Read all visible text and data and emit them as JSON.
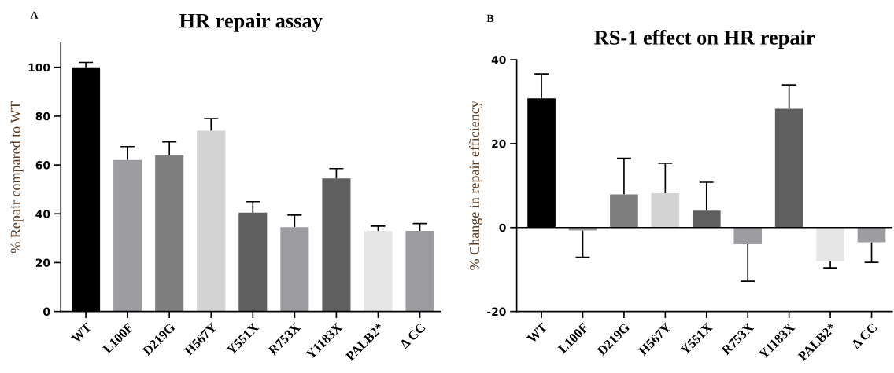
{
  "chart_data": [
    {
      "type": "bar",
      "title": "HR repair assay",
      "ylabel": "% Repair compared to WT",
      "annotations": [
        "A"
      ],
      "categories": [
        "WT",
        "L100F",
        "D219G",
        "H567Y",
        "Y551X",
        "R753X",
        "Y1183X",
        "PALB2*",
        "Δ CC"
      ],
      "values": [
        100,
        62,
        64,
        74,
        40.5,
        34.5,
        54.5,
        33,
        33
      ],
      "errors": [
        [
          100,
          102
        ],
        [
          62,
          67.5
        ],
        [
          64,
          69.5
        ],
        [
          74,
          79
        ],
        [
          40.5,
          45
        ],
        [
          34.5,
          39.5
        ],
        [
          54.5,
          58.5
        ],
        [
          33,
          35
        ],
        [
          33,
          36
        ]
      ],
      "colors": [
        "#000000",
        "#9d9ca1",
        "#7f7f7f",
        "#d3d3d3",
        "#5f5f5f",
        "#9d9ca1",
        "#5f5f5f",
        "#e6e6e6",
        "#9d9ca1"
      ],
      "ylim": [
        0,
        110
      ],
      "yticks": [
        0,
        20,
        40,
        60,
        80,
        100
      ],
      "grid": false,
      "legend": false
    },
    {
      "type": "bar",
      "title": "RS-1 effect on HR repair",
      "ylabel": "% Change in repair efficiency",
      "annotations": [
        "B"
      ],
      "categories": [
        "WT",
        "L100F",
        "D219G",
        "H567Y",
        "Y551X",
        "R753X",
        "Y1183X",
        "PALB2*",
        "Δ CC"
      ],
      "values": [
        30.8,
        -0.7,
        7.9,
        8.2,
        4.0,
        -4.0,
        28.3,
        -8.0,
        -3.5
      ],
      "errors": [
        [
          30.8,
          36.6
        ],
        [
          -7.1,
          -0.7
        ],
        [
          7.9,
          16.5
        ],
        [
          8.2,
          15.3
        ],
        [
          4.0,
          10.8
        ],
        [
          -12.8,
          -4.0
        ],
        [
          28.3,
          34.0
        ],
        [
          -9.6,
          -8.0
        ],
        [
          -8.3,
          -3.5
        ]
      ],
      "colors": [
        "#000000",
        "#9d9ca1",
        "#7f7f7f",
        "#d3d3d3",
        "#5f5f5f",
        "#9d9ca1",
        "#5f5f5f",
        "#e6e6e6",
        "#9d9ca1"
      ],
      "ylim": [
        -20,
        40
      ],
      "yticks": [
        -20,
        0,
        20,
        40
      ],
      "ref_lines": [
        {
          "axis": "y",
          "value": 0,
          "color": "#000000"
        }
      ],
      "grid": false,
      "legend": false
    }
  ]
}
